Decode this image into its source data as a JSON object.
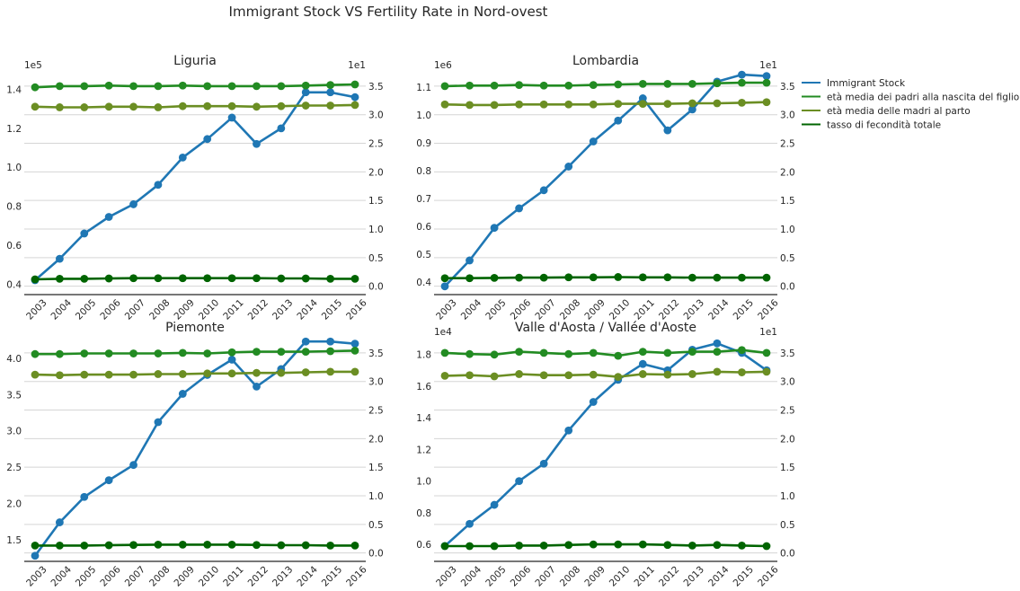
{
  "figure_title": "Immigrant Stock VS Fertility Rate in Nord-ovest",
  "legend": [
    {
      "label": "Immigrant Stock",
      "color": "#1f77b4"
    },
    {
      "label": "età media dei padri alla nascita del figlio",
      "color": "#228B22"
    },
    {
      "label": "età media delle madri al parto",
      "color": "#6B8E23"
    },
    {
      "label": "tasso di fecondità totale",
      "color": "#006400"
    }
  ],
  "chart_data": [
    {
      "type": "line",
      "title": "Liguria",
      "x": [
        "2003",
        "2004",
        "2005",
        "2006",
        "2007",
        "2008",
        "2009",
        "2010",
        "2011",
        "2012",
        "2013",
        "2014",
        "2015",
        "2016"
      ],
      "left_axis": {
        "multiplier": "1e5",
        "ticks": [
          "0.4",
          "0.6",
          "0.8",
          "1.0",
          "1.2",
          "1.4"
        ],
        "ylim": [
          0.36,
          1.49
        ]
      },
      "right_axis": {
        "multiplier": "1e1",
        "ticks": [
          "0.0",
          "0.5",
          "1.0",
          "1.5",
          "2.0",
          "2.5",
          "3.0",
          "3.5"
        ],
        "ylim": [
          -0.1,
          3.75
        ]
      },
      "series": [
        {
          "name": "Immigrant Stock",
          "axis": "left",
          "color": "#1f77b4",
          "values": [
            0.42,
            0.53,
            0.66,
            0.745,
            0.81,
            0.91,
            1.05,
            1.145,
            1.255,
            1.12,
            1.2,
            1.385,
            1.385,
            1.36
          ]
        },
        {
          "name": "età media dei padri alla nascita del figlio",
          "axis": "right",
          "color": "#228B22",
          "values": [
            3.48,
            3.5,
            3.5,
            3.51,
            3.5,
            3.5,
            3.51,
            3.5,
            3.5,
            3.5,
            3.5,
            3.51,
            3.52,
            3.53
          ]
        },
        {
          "name": "età media delle madri al parto",
          "axis": "right",
          "color": "#6B8E23",
          "values": [
            3.14,
            3.13,
            3.13,
            3.14,
            3.14,
            3.13,
            3.15,
            3.15,
            3.15,
            3.14,
            3.15,
            3.16,
            3.16,
            3.17
          ]
        },
        {
          "name": "tasso di fecondità totale",
          "axis": "right",
          "color": "#006400",
          "values": [
            0.12,
            0.13,
            0.13,
            0.135,
            0.14,
            0.14,
            0.14,
            0.14,
            0.14,
            0.14,
            0.135,
            0.135,
            0.13,
            0.13
          ]
        }
      ]
    },
    {
      "type": "line",
      "title": "Lombardia",
      "x": [
        "2003",
        "2004",
        "2005",
        "2006",
        "2007",
        "2008",
        "2009",
        "2010",
        "2011",
        "2012",
        "2013",
        "2014",
        "2015",
        "2016"
      ],
      "left_axis": {
        "multiplier": "1e6",
        "ticks": [
          "0.4",
          "0.5",
          "0.6",
          "0.7",
          "0.8",
          "0.9",
          "1.0",
          "1.1"
        ],
        "ylim": [
          0.365,
          1.155
        ]
      },
      "right_axis": {
        "multiplier": "1e1",
        "ticks": [
          "0.0",
          "0.5",
          "1.0",
          "1.5",
          "2.0",
          "2.5",
          "3.0",
          "3.5"
        ],
        "ylim": [
          -0.1,
          3.75
        ]
      },
      "series": [
        {
          "name": "Immigrant Stock",
          "axis": "left",
          "color": "#1f77b4",
          "values": [
            0.385,
            0.478,
            0.595,
            0.665,
            0.73,
            0.815,
            0.905,
            0.98,
            1.06,
            0.945,
            1.02,
            1.12,
            1.145,
            1.14
          ]
        },
        {
          "name": "età media dei padri alla nascita del figlio",
          "axis": "right",
          "color": "#228B22",
          "values": [
            3.5,
            3.51,
            3.51,
            3.52,
            3.51,
            3.51,
            3.52,
            3.53,
            3.54,
            3.54,
            3.54,
            3.55,
            3.56,
            3.56
          ]
        },
        {
          "name": "età media delle madri al parto",
          "axis": "right",
          "color": "#6B8E23",
          "values": [
            3.18,
            3.17,
            3.17,
            3.18,
            3.18,
            3.18,
            3.18,
            3.19,
            3.19,
            3.19,
            3.2,
            3.2,
            3.21,
            3.22
          ]
        },
        {
          "name": "tasso di fecondità totale",
          "axis": "right",
          "color": "#006400",
          "values": [
            0.14,
            0.14,
            0.145,
            0.15,
            0.15,
            0.155,
            0.155,
            0.16,
            0.155,
            0.155,
            0.15,
            0.15,
            0.15,
            0.15
          ]
        }
      ]
    },
    {
      "type": "line",
      "title": "Piemonte",
      "x": [
        "2003",
        "2004",
        "2005",
        "2006",
        "2007",
        "2008",
        "2009",
        "2010",
        "2011",
        "2012",
        "2013",
        "2014",
        "2015",
        "2016"
      ],
      "left_axis": {
        "multiplier": "",
        "ticks": [
          "1.5",
          "2.0",
          "2.5",
          "3.0",
          "3.5",
          "4.0"
        ],
        "ylim": [
          1.24,
          4.27
        ]
      },
      "right_axis": {
        "multiplier": "",
        "ticks": [
          "0.0",
          "0.5",
          "1.0",
          "1.5",
          "2.0",
          "2.5",
          "3.0",
          "3.5"
        ],
        "ylim": [
          -0.1,
          3.75
        ]
      },
      "series": [
        {
          "name": "Immigrant Stock",
          "axis": "left",
          "color": "#1f77b4",
          "values": [
            1.28,
            1.74,
            2.09,
            2.32,
            2.53,
            3.12,
            3.51,
            3.77,
            3.98,
            3.61,
            3.85,
            4.23,
            4.23,
            4.2
          ]
        },
        {
          "name": "età media dei padri alla nascita del figlio",
          "axis": "right",
          "color": "#228B22",
          "values": [
            3.48,
            3.48,
            3.49,
            3.49,
            3.49,
            3.49,
            3.5,
            3.49,
            3.51,
            3.52,
            3.52,
            3.52,
            3.53,
            3.54
          ]
        },
        {
          "name": "età media delle madri al parto",
          "axis": "right",
          "color": "#6B8E23",
          "values": [
            3.12,
            3.11,
            3.12,
            3.12,
            3.12,
            3.13,
            3.13,
            3.14,
            3.14,
            3.15,
            3.15,
            3.16,
            3.17,
            3.17
          ]
        },
        {
          "name": "tasso di fecondità totale",
          "axis": "right",
          "color": "#006400",
          "values": [
            0.13,
            0.13,
            0.13,
            0.135,
            0.14,
            0.145,
            0.145,
            0.145,
            0.145,
            0.14,
            0.135,
            0.135,
            0.13,
            0.13
          ]
        }
      ]
    },
    {
      "type": "line",
      "title": "Valle d'Aosta / Vallée d'Aoste",
      "x": [
        "2003",
        "2004",
        "2005",
        "2006",
        "2007",
        "2008",
        "2009",
        "2010",
        "2011",
        "2012",
        "2013",
        "2014",
        "2015",
        "2016"
      ],
      "left_axis": {
        "multiplier": "1e4",
        "ticks": [
          "0.6",
          "0.8",
          "1.0",
          "1.2",
          "1.4",
          "1.6",
          "1.8"
        ],
        "ylim": [
          0.51,
          1.9
        ]
      },
      "right_axis": {
        "multiplier": "1e1",
        "ticks": [
          "0.0",
          "0.5",
          "1.0",
          "1.5",
          "2.0",
          "2.5",
          "3.0",
          "3.5"
        ],
        "ylim": [
          -0.1,
          3.75
        ]
      },
      "series": [
        {
          "name": "Immigrant Stock",
          "axis": "left",
          "color": "#1f77b4",
          "values": [
            0.59,
            0.73,
            0.85,
            1.0,
            1.11,
            1.32,
            1.5,
            1.64,
            1.74,
            1.7,
            1.83,
            1.87,
            1.81,
            1.7
          ]
        },
        {
          "name": "età media dei padri alla nascita del figlio",
          "axis": "right",
          "color": "#228B22",
          "values": [
            3.5,
            3.48,
            3.47,
            3.52,
            3.5,
            3.48,
            3.5,
            3.45,
            3.52,
            3.5,
            3.52,
            3.52,
            3.55,
            3.5
          ]
        },
        {
          "name": "età media delle madri al parto",
          "axis": "right",
          "color": "#6B8E23",
          "values": [
            3.1,
            3.11,
            3.09,
            3.13,
            3.11,
            3.11,
            3.12,
            3.08,
            3.13,
            3.12,
            3.13,
            3.17,
            3.16,
            3.17
          ]
        },
        {
          "name": "tasso di fecondità totale",
          "axis": "right",
          "color": "#006400",
          "values": [
            0.12,
            0.12,
            0.12,
            0.13,
            0.13,
            0.14,
            0.15,
            0.15,
            0.15,
            0.14,
            0.13,
            0.14,
            0.13,
            0.12
          ]
        }
      ]
    }
  ]
}
